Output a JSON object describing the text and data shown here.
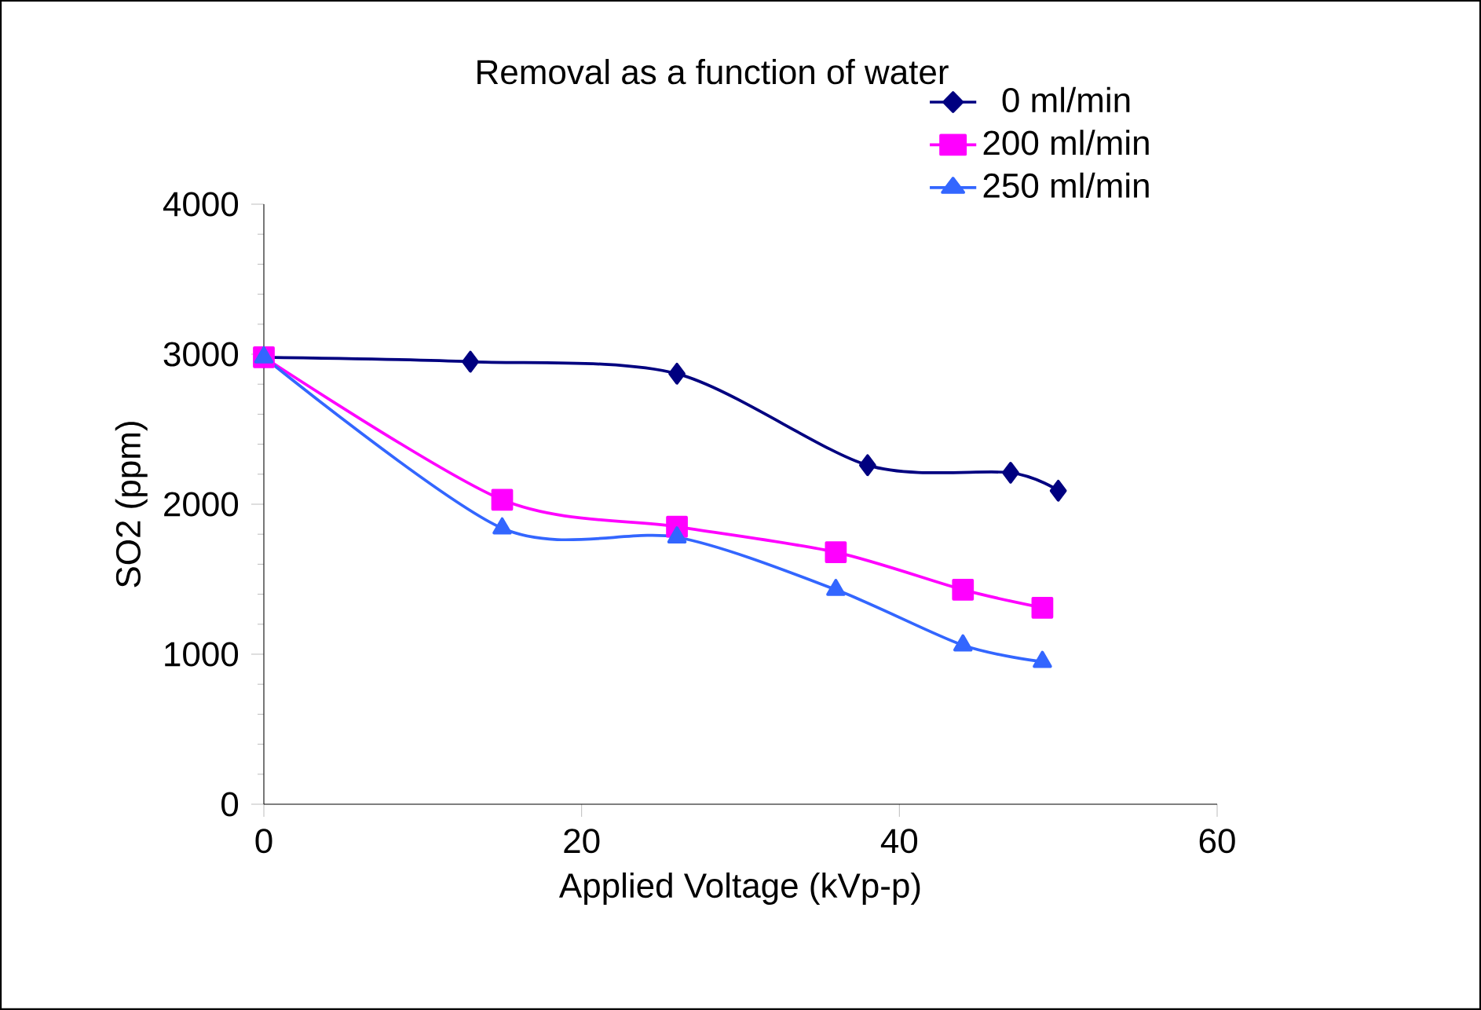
{
  "chart_data": {
    "type": "line",
    "title": "Removal as a function of water",
    "xlabel": "Applied Voltage (kVp-p)",
    "ylabel": "SO2 (ppm)",
    "xlim": [
      0,
      60
    ],
    "xticks": [
      0,
      20,
      40,
      60
    ],
    "ylim": [
      0,
      4000
    ],
    "yticks": [
      0,
      1000,
      2000,
      3000,
      4000
    ],
    "grid": false,
    "legend": "top right",
    "line_style": "solid",
    "series": [
      {
        "name": "0 ml/min",
        "color": "#000080",
        "marker": "diamond",
        "x": [
          0,
          13,
          26,
          38,
          47,
          50
        ],
        "values": [
          2980,
          2950,
          2870,
          2260,
          2210,
          2090
        ]
      },
      {
        "name": "200 ml/min",
        "color": "#ff00ff",
        "marker": "square",
        "x": [
          0,
          15,
          26,
          36,
          44,
          49
        ],
        "values": [
          2980,
          2030,
          1850,
          1680,
          1430,
          1310
        ]
      },
      {
        "name": "250 ml/min",
        "color": "#3366ff",
        "marker": "triangle",
        "x": [
          0,
          15,
          26,
          36,
          44,
          49
        ],
        "values": [
          2980,
          1840,
          1780,
          1430,
          1060,
          950
        ]
      }
    ]
  }
}
